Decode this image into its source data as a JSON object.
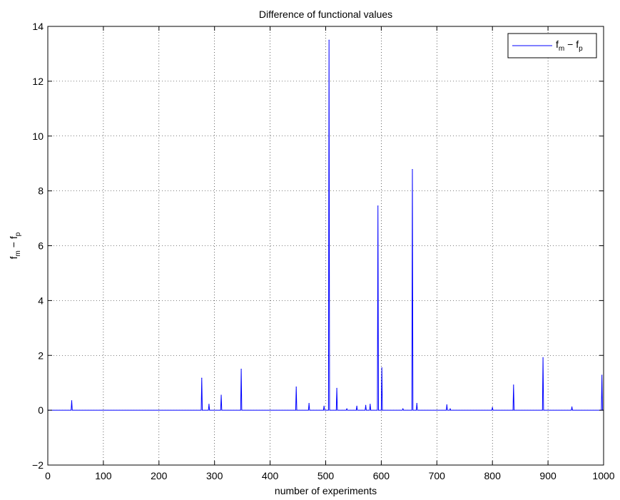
{
  "chart_data": {
    "type": "line",
    "title": "Difference of functional values",
    "xlabel": "number of experiments",
    "ylabel": {
      "base1": "f",
      "sub1": "m",
      "mid": " − ",
      "base2": "f",
      "sub2": "p"
    },
    "xlim": [
      0,
      1000
    ],
    "ylim": [
      -2,
      14
    ],
    "xticks": [
      0,
      100,
      200,
      300,
      400,
      500,
      600,
      700,
      800,
      900,
      1000
    ],
    "yticks": [
      -2,
      0,
      2,
      4,
      6,
      8,
      10,
      12,
      14
    ],
    "xtick_labels": [
      "0",
      "100",
      "200",
      "300",
      "400",
      "500",
      "600",
      "700",
      "800",
      "900",
      "1000"
    ],
    "ytick_labels": [
      "−2",
      "0",
      "2",
      "4",
      "6",
      "8",
      "10",
      "12",
      "14"
    ],
    "grid": true,
    "legend_position": "top-right",
    "series": [
      {
        "legend": {
          "base1": "f",
          "sub1": "m",
          "mid": " − ",
          "base2": "f",
          "sub2": "p"
        },
        "color": "#0000ff",
        "spikes": [
          [
            43,
            0.35
          ],
          [
            277,
            1.17
          ],
          [
            290,
            0.22
          ],
          [
            312,
            0.55
          ],
          [
            348,
            1.5
          ],
          [
            447,
            0.85
          ],
          [
            470,
            0.25
          ],
          [
            497,
            0.15
          ],
          [
            506,
            13.5
          ],
          [
            520,
            0.8
          ],
          [
            538,
            0.05
          ],
          [
            556,
            0.15
          ],
          [
            572,
            0.18
          ],
          [
            580,
            0.22
          ],
          [
            594,
            7.45
          ],
          [
            601,
            1.55
          ],
          [
            639,
            0.05
          ],
          [
            656,
            8.78
          ],
          [
            664,
            0.25
          ],
          [
            718,
            0.2
          ],
          [
            724,
            0.05
          ],
          [
            800,
            0.1
          ],
          [
            838,
            0.92
          ],
          [
            891,
            1.92
          ],
          [
            943,
            0.12
          ],
          [
            997,
            1.28
          ]
        ]
      }
    ]
  }
}
